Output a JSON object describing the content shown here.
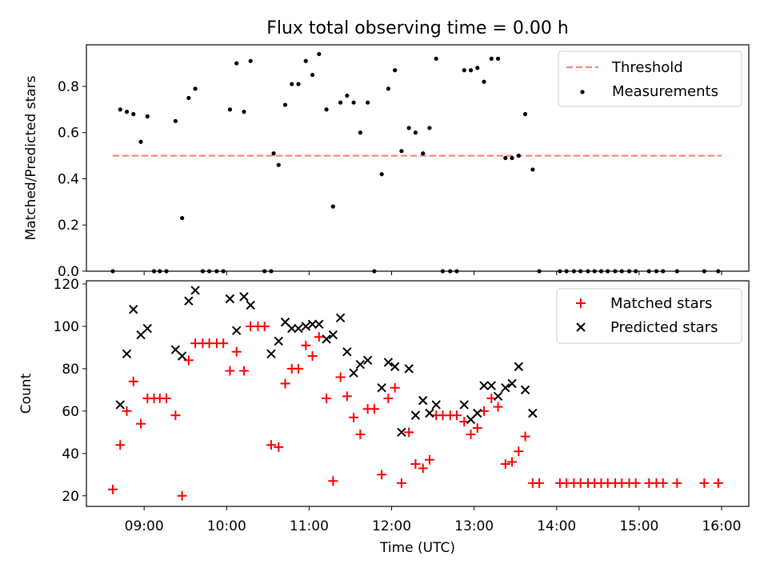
{
  "chart_data": [
    {
      "type": "scatter",
      "title": "Flux total observing time = 0.00 h",
      "ylabel": "Matched/Predicted stars",
      "xlim": [
        8.3,
        16.33
      ],
      "ylim": [
        0,
        0.98
      ],
      "xticks": [
        9,
        10,
        11,
        12,
        13,
        14,
        15,
        16
      ],
      "yticks": [
        0,
        0.2,
        0.4,
        0.6,
        0.8
      ],
      "ytick_labels": [
        "0.0",
        "0.2",
        "0.4",
        "0.6",
        "0.8"
      ],
      "legend_position": "top-right",
      "threshold": {
        "name": "Threshold",
        "y": 0.5,
        "x": [
          8.62,
          16.0
        ],
        "color": "#ff8080"
      },
      "series": [
        {
          "name": "Measurements",
          "color": "#000000",
          "points": [
            [
              8.62,
              0.0
            ],
            [
              8.71,
              0.7
            ],
            [
              8.79,
              0.69
            ],
            [
              8.87,
              0.68
            ],
            [
              8.96,
              0.56
            ],
            [
              9.04,
              0.67
            ],
            [
              9.12,
              0.0
            ],
            [
              9.19,
              0.0
            ],
            [
              9.27,
              0.0
            ],
            [
              9.38,
              0.65
            ],
            [
              9.46,
              0.23
            ],
            [
              9.54,
              0.75
            ],
            [
              9.62,
              0.79
            ],
            [
              9.71,
              0.0
            ],
            [
              9.79,
              0.0
            ],
            [
              9.88,
              0.0
            ],
            [
              9.96,
              0.0
            ],
            [
              10.04,
              0.7
            ],
            [
              10.12,
              0.9
            ],
            [
              10.21,
              0.69
            ],
            [
              10.29,
              0.91
            ],
            [
              10.46,
              0.0
            ],
            [
              10.54,
              0.0
            ],
            [
              10.57,
              0.51
            ],
            [
              10.63,
              0.46
            ],
            [
              10.71,
              0.72
            ],
            [
              10.79,
              0.81
            ],
            [
              10.87,
              0.81
            ],
            [
              10.96,
              0.91
            ],
            [
              11.04,
              0.85
            ],
            [
              11.12,
              0.94
            ],
            [
              11.21,
              0.7
            ],
            [
              11.29,
              0.28
            ],
            [
              11.38,
              0.73
            ],
            [
              11.46,
              0.76
            ],
            [
              11.54,
              0.73
            ],
            [
              11.62,
              0.6
            ],
            [
              11.71,
              0.73
            ],
            [
              11.79,
              0.0
            ],
            [
              11.88,
              0.42
            ],
            [
              11.96,
              0.79
            ],
            [
              12.04,
              0.87
            ],
            [
              12.12,
              0.52
            ],
            [
              12.21,
              0.62
            ],
            [
              12.29,
              0.6
            ],
            [
              12.38,
              0.51
            ],
            [
              12.46,
              0.62
            ],
            [
              12.54,
              0.92
            ],
            [
              12.62,
              0.0
            ],
            [
              12.71,
              0.0
            ],
            [
              12.79,
              0.0
            ],
            [
              12.88,
              0.87
            ],
            [
              12.96,
              0.87
            ],
            [
              13.04,
              0.88
            ],
            [
              13.12,
              0.82
            ],
            [
              13.21,
              0.92
            ],
            [
              13.29,
              0.92
            ],
            [
              13.38,
              0.49
            ],
            [
              13.46,
              0.49
            ],
            [
              13.54,
              0.5
            ],
            [
              13.62,
              0.68
            ],
            [
              13.71,
              0.44
            ],
            [
              13.79,
              0.0
            ],
            [
              14.04,
              0.0
            ],
            [
              14.12,
              0.0
            ],
            [
              14.21,
              0.0
            ],
            [
              14.29,
              0.0
            ],
            [
              14.38,
              0.0
            ],
            [
              14.46,
              0.0
            ],
            [
              14.54,
              0.0
            ],
            [
              14.62,
              0.0
            ],
            [
              14.71,
              0.0
            ],
            [
              14.79,
              0.0
            ],
            [
              14.88,
              0.0
            ],
            [
              14.96,
              0.0
            ],
            [
              15.12,
              0.0
            ],
            [
              15.21,
              0.0
            ],
            [
              15.29,
              0.0
            ],
            [
              15.46,
              0.0
            ],
            [
              15.79,
              0.0
            ],
            [
              15.96,
              0.0
            ]
          ]
        }
      ]
    },
    {
      "type": "scatter",
      "title": "",
      "xlabel": "Time (UTC)",
      "ylabel": "Count",
      "xlim": [
        8.3,
        16.33
      ],
      "ylim": [
        15,
        121.5
      ],
      "xticks": [
        9,
        10,
        11,
        12,
        13,
        14,
        15,
        16
      ],
      "xtick_labels": [
        "09:00",
        "10:00",
        "11:00",
        "12:00",
        "13:00",
        "14:00",
        "15:00",
        "16:00"
      ],
      "yticks": [
        20,
        40,
        60,
        80,
        100,
        120
      ],
      "ytick_labels": [
        "20",
        "40",
        "60",
        "80",
        "100",
        "120"
      ],
      "legend_position": "top-right",
      "series": [
        {
          "name": "Matched stars",
          "marker": "plus",
          "color": "#ff0000",
          "points": [
            [
              8.62,
              23
            ],
            [
              8.71,
              44
            ],
            [
              8.79,
              60
            ],
            [
              8.87,
              74
            ],
            [
              8.96,
              54
            ],
            [
              9.04,
              66
            ],
            [
              9.12,
              66
            ],
            [
              9.19,
              66
            ],
            [
              9.27,
              66
            ],
            [
              9.38,
              58
            ],
            [
              9.46,
              20
            ],
            [
              9.54,
              84
            ],
            [
              9.62,
              92
            ],
            [
              9.71,
              92
            ],
            [
              9.79,
              92
            ],
            [
              9.88,
              92
            ],
            [
              9.96,
              92
            ],
            [
              10.04,
              79
            ],
            [
              10.12,
              88
            ],
            [
              10.21,
              79
            ],
            [
              10.29,
              100
            ],
            [
              10.38,
              100
            ],
            [
              10.46,
              100
            ],
            [
              10.54,
              44
            ],
            [
              10.63,
              43
            ],
            [
              10.71,
              73
            ],
            [
              10.79,
              80
            ],
            [
              10.87,
              80
            ],
            [
              10.96,
              91
            ],
            [
              11.04,
              86
            ],
            [
              11.12,
              95
            ],
            [
              11.21,
              66
            ],
            [
              11.29,
              27
            ],
            [
              11.38,
              76
            ],
            [
              11.46,
              67
            ],
            [
              11.54,
              57
            ],
            [
              11.62,
              49
            ],
            [
              11.71,
              61
            ],
            [
              11.79,
              61
            ],
            [
              11.88,
              30
            ],
            [
              11.96,
              66
            ],
            [
              12.04,
              71
            ],
            [
              12.12,
              26
            ],
            [
              12.21,
              50
            ],
            [
              12.29,
              35
            ],
            [
              12.38,
              33
            ],
            [
              12.46,
              37
            ],
            [
              12.54,
              58
            ],
            [
              12.62,
              58
            ],
            [
              12.71,
              58
            ],
            [
              12.79,
              58
            ],
            [
              12.88,
              55
            ],
            [
              12.96,
              49
            ],
            [
              13.04,
              52
            ],
            [
              13.12,
              60
            ],
            [
              13.21,
              66
            ],
            [
              13.29,
              62
            ],
            [
              13.38,
              35
            ],
            [
              13.46,
              36
            ],
            [
              13.54,
              41
            ],
            [
              13.62,
              48
            ],
            [
              13.71,
              26
            ],
            [
              13.79,
              26
            ],
            [
              14.04,
              26
            ],
            [
              14.12,
              26
            ],
            [
              14.21,
              26
            ],
            [
              14.29,
              26
            ],
            [
              14.38,
              26
            ],
            [
              14.46,
              26
            ],
            [
              14.54,
              26
            ],
            [
              14.62,
              26
            ],
            [
              14.71,
              26
            ],
            [
              14.79,
              26
            ],
            [
              14.88,
              26
            ],
            [
              14.96,
              26
            ],
            [
              15.12,
              26
            ],
            [
              15.21,
              26
            ],
            [
              15.29,
              26
            ],
            [
              15.46,
              26
            ],
            [
              15.79,
              26
            ],
            [
              15.96,
              26
            ]
          ]
        },
        {
          "name": "Predicted stars",
          "marker": "x",
          "color": "#000000",
          "points": [
            [
              8.71,
              63
            ],
            [
              8.79,
              87
            ],
            [
              8.87,
              108
            ],
            [
              8.96,
              96
            ],
            [
              9.04,
              99
            ],
            [
              9.38,
              89
            ],
            [
              9.46,
              86
            ],
            [
              9.54,
              112
            ],
            [
              9.62,
              117
            ],
            [
              10.04,
              113
            ],
            [
              10.12,
              98
            ],
            [
              10.21,
              114
            ],
            [
              10.29,
              110
            ],
            [
              10.54,
              87
            ],
            [
              10.63,
              93
            ],
            [
              10.71,
              102
            ],
            [
              10.79,
              99
            ],
            [
              10.87,
              99
            ],
            [
              10.96,
              100
            ],
            [
              11.04,
              101
            ],
            [
              11.12,
              101
            ],
            [
              11.21,
              94
            ],
            [
              11.29,
              96
            ],
            [
              11.38,
              104
            ],
            [
              11.46,
              88
            ],
            [
              11.54,
              78
            ],
            [
              11.62,
              82
            ],
            [
              11.71,
              84
            ],
            [
              11.88,
              71
            ],
            [
              11.96,
              83
            ],
            [
              12.04,
              81
            ],
            [
              12.12,
              50
            ],
            [
              12.21,
              80
            ],
            [
              12.29,
              58
            ],
            [
              12.38,
              65
            ],
            [
              12.46,
              59
            ],
            [
              12.54,
              63
            ],
            [
              12.88,
              63
            ],
            [
              12.96,
              56
            ],
            [
              13.04,
              59
            ],
            [
              13.12,
              72
            ],
            [
              13.21,
              72
            ],
            [
              13.29,
              67
            ],
            [
              13.38,
              71
            ],
            [
              13.46,
              73
            ],
            [
              13.54,
              81
            ],
            [
              13.62,
              70
            ],
            [
              13.71,
              59
            ]
          ]
        }
      ]
    }
  ]
}
